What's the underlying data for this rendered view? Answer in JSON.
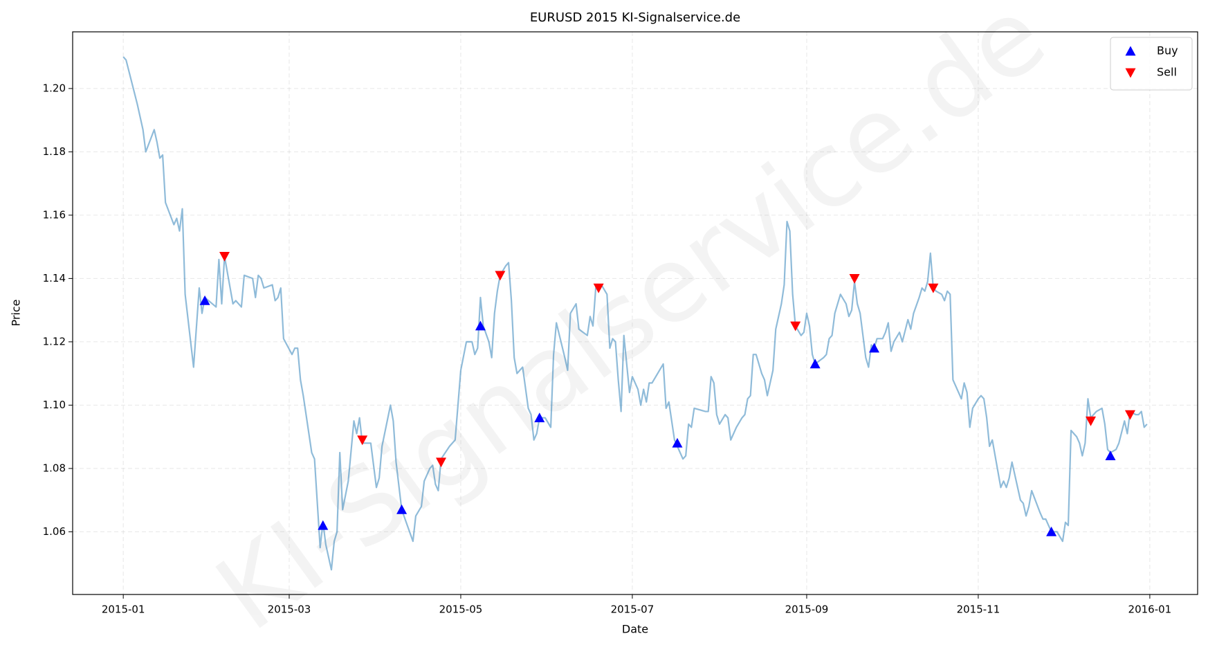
{
  "chart_data": {
    "type": "line",
    "title": "EURUSD 2015 KI-Signalservice.de",
    "xlabel": "Date",
    "ylabel": "Price",
    "watermark": "KI-Signalservice.de",
    "color": "#1f77b4",
    "alpha": 0.5,
    "grid": true,
    "legend": "upper right",
    "xlim": [
      "2014-12-14",
      "2016-01-18"
    ],
    "xticks": [
      {
        "value": "2015-01-01",
        "label": "2015-01"
      },
      {
        "value": "2015-03-01",
        "label": "2015-03"
      },
      {
        "value": "2015-05-01",
        "label": "2015-05"
      },
      {
        "value": "2015-07-01",
        "label": "2015-07"
      },
      {
        "value": "2015-09-01",
        "label": "2015-09"
      },
      {
        "value": "2015-11-01",
        "label": "2015-11"
      },
      {
        "value": "2016-01-01",
        "label": "2016-01"
      }
    ],
    "ylim": [
      1.0402,
      1.2179
    ],
    "yticks": [
      1.06,
      1.08,
      {
        "value": 1.1,
        "label": "1.10"
      },
      1.12,
      1.14,
      1.16,
      1.18,
      {
        "value": 1.2,
        "label": "1.20"
      }
    ],
    "x": [
      "2015-01-01",
      "2015-01-02",
      "2015-01-06",
      "2015-01-08",
      "2015-01-09",
      "2015-01-12",
      "2015-01-13",
      "2015-01-14",
      "2015-01-15",
      "2015-01-16",
      "2015-01-19",
      "2015-01-20",
      "2015-01-21",
      "2015-01-22",
      "2015-01-23",
      "2015-01-26",
      "2015-01-28",
      "2015-01-29",
      "2015-01-30",
      "2015-02-03",
      "2015-02-04",
      "2015-02-05",
      "2015-02-06",
      "2015-02-09",
      "2015-02-10",
      "2015-02-12",
      "2015-02-13",
      "2015-02-16",
      "2015-02-17",
      "2015-02-18",
      "2015-02-19",
      "2015-02-20",
      "2015-02-23",
      "2015-02-24",
      "2015-02-25",
      "2015-02-26",
      "2015-02-27",
      "2015-03-02",
      "2015-03-03",
      "2015-03-04",
      "2015-03-05",
      "2015-03-06",
      "2015-03-09",
      "2015-03-10",
      "2015-03-12",
      "2015-03-13",
      "2015-03-14",
      "2015-03-16",
      "2015-03-17",
      "2015-03-18",
      "2015-03-19",
      "2015-03-20",
      "2015-03-22",
      "2015-03-24",
      "2015-03-25",
      "2015-03-26",
      "2015-03-27",
      "2015-03-30",
      "2015-04-01",
      "2015-04-02",
      "2015-04-03",
      "2015-04-06",
      "2015-04-07",
      "2015-04-08",
      "2015-04-10",
      "2015-04-12",
      "2015-04-14",
      "2015-04-15",
      "2015-04-17",
      "2015-04-18",
      "2015-04-20",
      "2015-04-21",
      "2015-04-22",
      "2015-04-23",
      "2015-04-24",
      "2015-04-27",
      "2015-04-29",
      "2015-04-30",
      "2015-05-01",
      "2015-05-03",
      "2015-05-05",
      "2015-05-06",
      "2015-05-07",
      "2015-05-08",
      "2015-05-09",
      "2015-05-11",
      "2015-05-12",
      "2015-05-13",
      "2015-05-14",
      "2015-05-15",
      "2015-05-17",
      "2015-05-18",
      "2015-05-19",
      "2015-05-20",
      "2015-05-21",
      "2015-05-23",
      "2015-05-25",
      "2015-05-26",
      "2015-05-27",
      "2015-05-28",
      "2015-05-29",
      "2015-05-31",
      "2015-06-02",
      "2015-06-03",
      "2015-06-04",
      "2015-06-07",
      "2015-06-08",
      "2015-06-09",
      "2015-06-11",
      "2015-06-12",
      "2015-06-15",
      "2015-06-16",
      "2015-06-17",
      "2015-06-18",
      "2015-06-20",
      "2015-06-22",
      "2015-06-23",
      "2015-06-24",
      "2015-06-25",
      "2015-06-26",
      "2015-06-27",
      "2015-06-28",
      "2015-06-30",
      "2015-07-01",
      "2015-07-03",
      "2015-07-04",
      "2015-07-05",
      "2015-07-06",
      "2015-07-07",
      "2015-07-08",
      "2015-07-10",
      "2015-07-12",
      "2015-07-13",
      "2015-07-14",
      "2015-07-15",
      "2015-07-16",
      "2015-07-17",
      "2015-07-18",
      "2015-07-19",
      "2015-07-20",
      "2015-07-21",
      "2015-07-22",
      "2015-07-23",
      "2015-07-27",
      "2015-07-28",
      "2015-07-29",
      "2015-07-30",
      "2015-07-31",
      "2015-08-01",
      "2015-08-03",
      "2015-08-04",
      "2015-08-05",
      "2015-08-07",
      "2015-08-09",
      "2015-08-10",
      "2015-08-11",
      "2015-08-12",
      "2015-08-13",
      "2015-08-14",
      "2015-08-16",
      "2015-08-17",
      "2015-08-18",
      "2015-08-20",
      "2015-08-21",
      "2015-08-23",
      "2015-08-24",
      "2015-08-25",
      "2015-08-26",
      "2015-08-27",
      "2015-08-28",
      "2015-08-30",
      "2015-08-31",
      "2015-09-01",
      "2015-09-02",
      "2015-09-03",
      "2015-09-04",
      "2015-09-07",
      "2015-09-08",
      "2015-09-09",
      "2015-09-10",
      "2015-09-11",
      "2015-09-13",
      "2015-09-15",
      "2015-09-16",
      "2015-09-17",
      "2015-09-18",
      "2015-09-19",
      "2015-09-20",
      "2015-09-21",
      "2015-09-22",
      "2015-09-23",
      "2015-09-24",
      "2015-09-25",
      "2015-09-26",
      "2015-09-28",
      "2015-09-29",
      "2015-09-30",
      "2015-10-01",
      "2015-10-02",
      "2015-10-04",
      "2015-10-05",
      "2015-10-07",
      "2015-10-08",
      "2015-10-09",
      "2015-10-11",
      "2015-10-12",
      "2015-10-13",
      "2015-10-14",
      "2015-10-15",
      "2015-10-16",
      "2015-10-17",
      "2015-10-19",
      "2015-10-20",
      "2015-10-21",
      "2015-10-22",
      "2015-10-23",
      "2015-10-25",
      "2015-10-26",
      "2015-10-27",
      "2015-10-28",
      "2015-10-29",
      "2015-10-30",
      "2015-11-01",
      "2015-11-02",
      "2015-11-03",
      "2015-11-04",
      "2015-11-05",
      "2015-11-06",
      "2015-11-09",
      "2015-11-10",
      "2015-11-11",
      "2015-11-12",
      "2015-11-13",
      "2015-11-16",
      "2015-11-17",
      "2015-11-18",
      "2015-11-19",
      "2015-11-20",
      "2015-11-23",
      "2015-11-24",
      "2015-11-25",
      "2015-11-26",
      "2015-11-27",
      "2015-11-29",
      "2015-12-01",
      "2015-12-02",
      "2015-12-03",
      "2015-12-04",
      "2015-12-06",
      "2015-12-07",
      "2015-12-08",
      "2015-12-09",
      "2015-12-10",
      "2015-12-11",
      "2015-12-12",
      "2015-12-13",
      "2015-12-15",
      "2015-12-16",
      "2015-12-17",
      "2015-12-18",
      "2015-12-20",
      "2015-12-21",
      "2015-12-23",
      "2015-12-24",
      "2015-12-25",
      "2015-12-27",
      "2015-12-28",
      "2015-12-29",
      "2015-12-30",
      "2015-12-31"
    ],
    "values": [
      1.21,
      1.209,
      1.195,
      1.187,
      1.18,
      1.187,
      1.183,
      1.178,
      1.179,
      1.164,
      1.157,
      1.159,
      1.155,
      1.162,
      1.135,
      1.112,
      1.137,
      1.129,
      1.134,
      1.131,
      1.146,
      1.132,
      1.147,
      1.132,
      1.133,
      1.131,
      1.141,
      1.14,
      1.134,
      1.141,
      1.14,
      1.137,
      1.138,
      1.133,
      1.134,
      1.137,
      1.121,
      1.116,
      1.118,
      1.118,
      1.108,
      1.103,
      1.085,
      1.083,
      1.055,
      1.063,
      1.056,
      1.048,
      1.057,
      1.06,
      1.085,
      1.067,
      1.076,
      1.095,
      1.091,
      1.096,
      1.088,
      1.088,
      1.074,
      1.077,
      1.087,
      1.1,
      1.095,
      1.082,
      1.067,
      1.062,
      1.057,
      1.065,
      1.068,
      1.076,
      1.08,
      1.081,
      1.075,
      1.073,
      1.083,
      1.087,
      1.089,
      1.1,
      1.111,
      1.12,
      1.12,
      1.116,
      1.118,
      1.134,
      1.125,
      1.12,
      1.115,
      1.129,
      1.136,
      1.141,
      1.144,
      1.145,
      1.133,
      1.115,
      1.11,
      1.112,
      1.099,
      1.097,
      1.089,
      1.091,
      1.096,
      1.096,
      1.093,
      1.116,
      1.126,
      1.115,
      1.111,
      1.129,
      1.132,
      1.124,
      1.122,
      1.128,
      1.125,
      1.137,
      1.138,
      1.135,
      1.118,
      1.121,
      1.12,
      1.108,
      1.098,
      1.122,
      1.104,
      1.109,
      1.105,
      1.1,
      1.105,
      1.101,
      1.107,
      1.107,
      1.11,
      1.113,
      1.099,
      1.101,
      1.095,
      1.089,
      1.087,
      1.085,
      1.083,
      1.084,
      1.094,
      1.093,
      1.099,
      1.098,
      1.098,
      1.109,
      1.107,
      1.097,
      1.094,
      1.097,
      1.096,
      1.089,
      1.093,
      1.096,
      1.097,
      1.102,
      1.103,
      1.116,
      1.116,
      1.11,
      1.108,
      1.103,
      1.111,
      1.124,
      1.132,
      1.138,
      1.158,
      1.155,
      1.135,
      1.125,
      1.122,
      1.123,
      1.129,
      1.125,
      1.116,
      1.113,
      1.115,
      1.116,
      1.121,
      1.122,
      1.129,
      1.135,
      1.132,
      1.128,
      1.13,
      1.139,
      1.132,
      1.129,
      1.122,
      1.115,
      1.112,
      1.119,
      1.118,
      1.121,
      1.121,
      1.123,
      1.126,
      1.117,
      1.12,
      1.123,
      1.12,
      1.127,
      1.124,
      1.129,
      1.134,
      1.137,
      1.136,
      1.139,
      1.148,
      1.137,
      1.136,
      1.135,
      1.133,
      1.136,
      1.135,
      1.108,
      1.104,
      1.102,
      1.107,
      1.104,
      1.093,
      1.099,
      1.102,
      1.103,
      1.102,
      1.096,
      1.087,
      1.089,
      1.074,
      1.076,
      1.074,
      1.077,
      1.082,
      1.07,
      1.069,
      1.065,
      1.068,
      1.073,
      1.066,
      1.064,
      1.064,
      1.062,
      1.06,
      1.06,
      1.057,
      1.063,
      1.062,
      1.092,
      1.09,
      1.088,
      1.084,
      1.088,
      1.102,
      1.096,
      1.097,
      1.098,
      1.099,
      1.094,
      1.086,
      1.085,
      1.086,
      1.088,
      1.095,
      1.091,
      1.098,
      1.097,
      1.097,
      1.098,
      1.093,
      1.094
    ],
    "markers": [
      {
        "name": "Buy",
        "color": "#0000ff",
        "shape": "^",
        "x": [
          "2015-01-30",
          "2015-03-13",
          "2015-04-10",
          "2015-05-08",
          "2015-05-29",
          "2015-07-17",
          "2015-09-04",
          "2015-09-25",
          "2015-11-27",
          "2015-12-18"
        ],
        "values": [
          1.133,
          1.062,
          1.067,
          1.125,
          1.096,
          1.088,
          1.113,
          1.118,
          1.06,
          1.084
        ]
      },
      {
        "name": "Sell",
        "color": "#ff0000",
        "shape": "v",
        "x": [
          "2015-02-06",
          "2015-03-27",
          "2015-04-24",
          "2015-05-15",
          "2015-06-19",
          "2015-08-28",
          "2015-09-18",
          "2015-10-16",
          "2015-12-11",
          "2015-12-25"
        ],
        "values": [
          1.147,
          1.089,
          1.082,
          1.141,
          1.137,
          1.125,
          1.14,
          1.137,
          1.095,
          1.097
        ]
      }
    ]
  }
}
